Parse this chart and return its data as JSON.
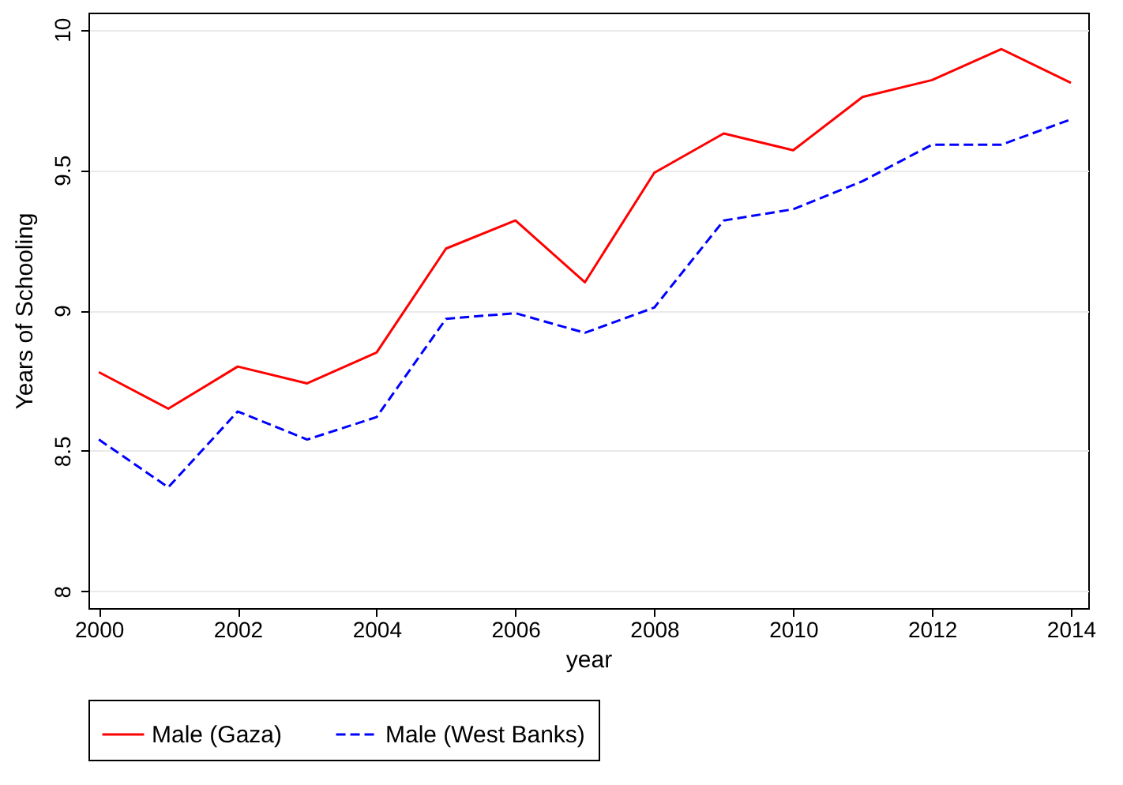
{
  "chart_data": {
    "type": "line",
    "xlabel": "year",
    "ylabel": "Years of Schooling",
    "x": [
      2000,
      2001,
      2002,
      2003,
      2004,
      2005,
      2006,
      2007,
      2008,
      2009,
      2010,
      2011,
      2012,
      2013,
      2014
    ],
    "series": [
      {
        "name": "Male (Gaza)",
        "color": "#ff0000",
        "line_style": "solid",
        "values": [
          8.78,
          8.65,
          8.8,
          8.74,
          8.85,
          9.22,
          9.32,
          9.1,
          9.49,
          9.63,
          9.57,
          9.76,
          9.82,
          9.93,
          9.81
        ]
      },
      {
        "name": "Male (West Banks)",
        "color": "#0000ff",
        "line_style": "dashed",
        "values": [
          8.54,
          8.37,
          8.64,
          8.54,
          8.62,
          8.97,
          8.99,
          8.92,
          9.01,
          9.32,
          9.36,
          9.46,
          9.59,
          9.59,
          9.68
        ]
      }
    ],
    "xlim": [
      1999.85,
      2014.25
    ],
    "xticks": [
      2000,
      2002,
      2004,
      2006,
      2008,
      2010,
      2012,
      2014
    ],
    "ylim": [
      7.94,
      10.06
    ],
    "yticks": [
      8,
      8.5,
      9,
      9.5,
      10
    ],
    "grid": "y",
    "legend": "bottom",
    "marker": "none"
  }
}
